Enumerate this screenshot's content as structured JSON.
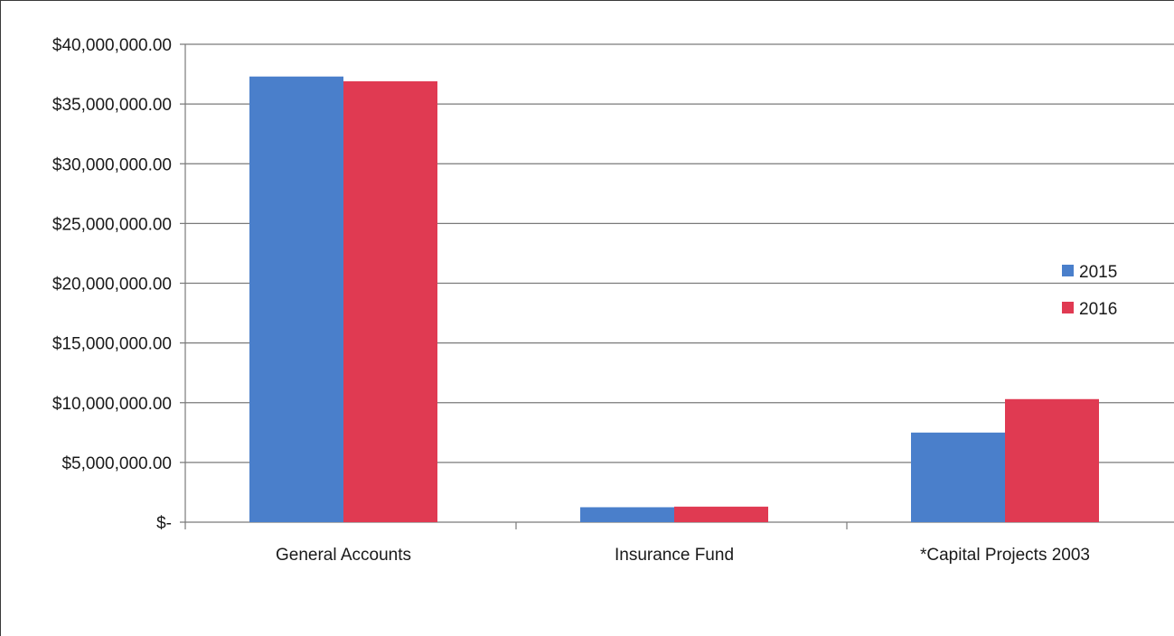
{
  "chart_data": {
    "type": "bar",
    "title": "",
    "xlabel": "",
    "ylabel": "",
    "categories": [
      "General Accounts",
      "Insurance Fund",
      "*Capital Projects 2003"
    ],
    "series": [
      {
        "name": "2015",
        "color": "#4a7fcb",
        "values": [
          37300000,
          1250000,
          7500000
        ]
      },
      {
        "name": "2016",
        "color": "#e03a52",
        "values": [
          36900000,
          1300000,
          10300000
        ]
      }
    ],
    "ylim": [
      0,
      40000000
    ],
    "yticks": [
      {
        "value": 0,
        "label": "$-"
      },
      {
        "value": 5000000,
        "label": "$5,000,000.00"
      },
      {
        "value": 10000000,
        "label": "$10,000,000.00"
      },
      {
        "value": 15000000,
        "label": "$15,000,000.00"
      },
      {
        "value": 20000000,
        "label": "$20,000,000.00"
      },
      {
        "value": 25000000,
        "label": "$25,000,000.00"
      },
      {
        "value": 30000000,
        "label": "$30,000,000.00"
      },
      {
        "value": 35000000,
        "label": "$35,000,000.00"
      },
      {
        "value": 40000000,
        "label": "$40,000,000.00"
      }
    ],
    "grid": true,
    "legend_position": "right"
  }
}
